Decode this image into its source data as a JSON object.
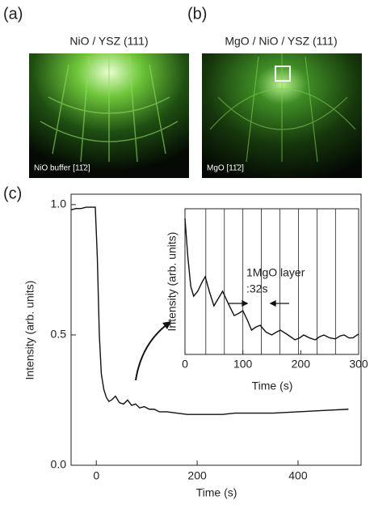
{
  "panels": {
    "a": {
      "label": "(a)",
      "title": "NiO / YSZ (111)",
      "note": "NiO buffer [11̄2]"
    },
    "b": {
      "label": "(b)",
      "title": "MgO / NiO / YSZ (111)",
      "note": "MgO [11̄2]"
    }
  },
  "chart_data": {
    "type": "line",
    "label": "(c)",
    "x_label": "Time (s)",
    "y_label": "Intensity (arb. units)",
    "color": "#111111",
    "x": [
      -50,
      -40,
      -30,
      -20,
      -10,
      -2,
      2,
      6,
      10,
      15,
      20,
      25,
      30,
      38,
      46,
      54,
      62,
      70,
      78,
      86,
      95,
      105,
      115,
      125,
      140,
      160,
      180,
      200,
      225,
      250,
      275,
      300,
      350,
      400,
      450,
      500
    ],
    "values": [
      0.98,
      0.985,
      0.985,
      0.99,
      0.99,
      0.99,
      0.8,
      0.5,
      0.35,
      0.29,
      0.26,
      0.245,
      0.25,
      0.265,
      0.24,
      0.235,
      0.25,
      0.23,
      0.235,
      0.22,
      0.225,
      0.215,
      0.215,
      0.205,
      0.205,
      0.2,
      0.195,
      0.195,
      0.195,
      0.195,
      0.2,
      0.2,
      0.2,
      0.205,
      0.21,
      0.215
    ],
    "xlim": [
      -50,
      525
    ],
    "xticks": [
      0,
      200,
      400
    ],
    "ylim": [
      0,
      1.04
    ],
    "yticks": [
      {
        "value": 0,
        "label": "0.0"
      },
      {
        "value": 0.5,
        "label": "0.5"
      },
      {
        "value": 1,
        "label": "1.0"
      }
    ],
    "inset": {
      "x_label": "Time (s)",
      "y_label": "Intensity (arb. units)",
      "annotation": "1MgO layer",
      "period_label": ":32s",
      "x": [
        0,
        5,
        10,
        15,
        22,
        30,
        35,
        42,
        50,
        58,
        65,
        75,
        85,
        92,
        100,
        108,
        115,
        122,
        130,
        140,
        150,
        158,
        165,
        178,
        190,
        198,
        205,
        215,
        225,
        232,
        240,
        250,
        260,
        268,
        275,
        283,
        290,
        300
      ],
      "values": [
        0.32,
        0.28,
        0.25,
        0.24,
        0.245,
        0.255,
        0.26,
        0.245,
        0.23,
        0.238,
        0.245,
        0.232,
        0.22,
        0.222,
        0.225,
        0.215,
        0.205,
        0.208,
        0.21,
        0.203,
        0.2,
        0.203,
        0.205,
        0.2,
        0.195,
        0.197,
        0.2,
        0.197,
        0.195,
        0.198,
        0.2,
        0.197,
        0.196,
        0.199,
        0.2,
        0.197,
        0.197,
        0.201
      ],
      "xlim": [
        0,
        300
      ],
      "xticks": [
        0,
        100,
        200,
        300
      ],
      "ylim": [
        0.18,
        0.33
      ],
      "vlines": [
        36,
        68,
        100,
        132,
        164,
        196,
        228,
        260
      ]
    }
  }
}
